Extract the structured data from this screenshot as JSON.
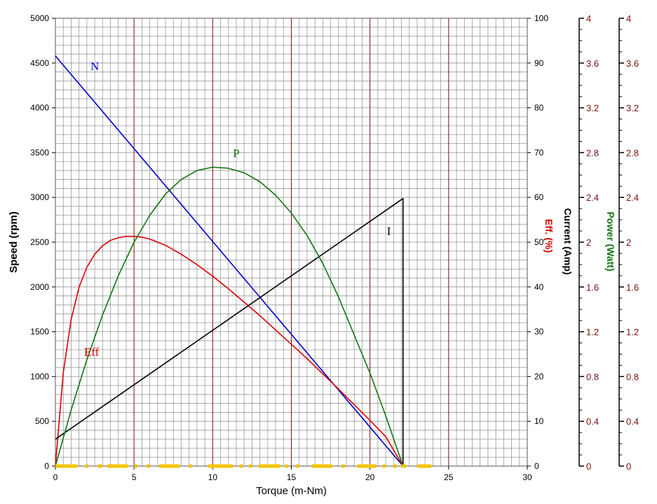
{
  "chart_data": {
    "type": "line",
    "xlabel": "Torque (m-Nm)",
    "x_ticks": [
      "0",
      "5",
      "10",
      "15",
      "20",
      "25",
      "30"
    ],
    "xlim": [
      0,
      30
    ],
    "grid": true,
    "axes": {
      "speed": {
        "label": "Speed (rpm)",
        "range": [
          0,
          5000
        ],
        "ticks": [
          "0",
          "500",
          "1000",
          "1500",
          "2000",
          "2500",
          "3000",
          "3500",
          "4000",
          "4500",
          "5000"
        ]
      },
      "efficiency": {
        "label": "Eff. (%)",
        "range": [
          0,
          100
        ],
        "ticks": [
          "0",
          "10",
          "20",
          "30",
          "40",
          "50",
          "60",
          "70",
          "80",
          "90",
          "100"
        ]
      },
      "current": {
        "label": "Current (Amp)",
        "range": [
          0,
          4
        ],
        "ticks": [
          "0",
          "0.4",
          "0.8",
          "1.2",
          "1.6",
          "2",
          "2.4",
          "2.8",
          "3.2",
          "3.6",
          "4"
        ]
      },
      "power": {
        "label": "Power (Watt)",
        "range": [
          0,
          4
        ],
        "ticks": [
          "0",
          "0.4",
          "0.8",
          "1.2",
          "1.6",
          "2",
          "2.4",
          "2.8",
          "3.2",
          "3.6",
          "4"
        ]
      }
    },
    "colors": {
      "speed": "#0000cc",
      "efficiency": "#dd0000",
      "current": "#000000",
      "power": "#117711",
      "grid_minor": "#999999",
      "grid_major": "#7a1010",
      "tick_text_right": "#7a1010",
      "marker": "#f5c400"
    },
    "series": [
      {
        "name": "N",
        "axis": "speed",
        "x": [
          0,
          22.1
        ],
        "y": [
          4580,
          0
        ]
      },
      {
        "name": "Eff",
        "axis": "efficiency",
        "x": [
          0,
          0.5,
          1,
          1.5,
          2,
          2.5,
          3,
          3.5,
          4,
          4.5,
          5,
          5.5,
          6,
          7,
          8,
          9,
          10,
          11,
          12,
          13,
          14,
          15,
          16,
          17,
          18,
          19,
          20,
          21,
          22.1
        ],
        "y": [
          0,
          20.8,
          32.7,
          39.9,
          44.4,
          47.3,
          49.2,
          50.4,
          51,
          51.3,
          51.3,
          51.1,
          50.7,
          49.3,
          47.3,
          45,
          42.4,
          39.6,
          36.6,
          33.6,
          30.4,
          27.2,
          24,
          20.6,
          17.2,
          13.7,
          10.2,
          6.6,
          0
        ]
      },
      {
        "name": "I",
        "axis": "current",
        "x": [
          0,
          22.1,
          22.1
        ],
        "y": [
          0.24,
          2.39,
          0
        ]
      },
      {
        "name": "P",
        "axis": "power",
        "x": [
          0,
          1,
          2,
          3,
          4,
          5,
          6,
          7,
          8,
          9,
          10,
          11,
          12,
          13,
          14,
          15,
          16,
          17,
          18,
          19,
          20,
          21,
          22.1
        ],
        "y": [
          0,
          0.5,
          0.95,
          1.35,
          1.7,
          2.0,
          2.24,
          2.43,
          2.56,
          2.64,
          2.67,
          2.66,
          2.62,
          2.54,
          2.42,
          2.26,
          2.06,
          1.81,
          1.51,
          1.17,
          0.83,
          0.45,
          0
        ]
      }
    ],
    "curve_labels": [
      {
        "text": "N",
        "x": 2.5,
        "axis": "speed",
        "y": 4420,
        "series": "N"
      },
      {
        "text": "P",
        "x": 11.5,
        "axis": "speed",
        "y": 3450,
        "series": "P"
      },
      {
        "text": "I",
        "x": 21.2,
        "axis": "speed",
        "y": 2580,
        "series": "I"
      },
      {
        "text": "Eff",
        "x": 2.3,
        "axis": "speed",
        "y": 1230,
        "series": "Eff"
      }
    ],
    "marker_x_ranges": [
      [
        0,
        1.4
      ],
      [
        1.9,
        2.1
      ],
      [
        2.7,
        3.0
      ],
      [
        3.3,
        4.6
      ],
      [
        5.0,
        5.2
      ],
      [
        5.8,
        6.0
      ],
      [
        6.6,
        7.9
      ],
      [
        8.5,
        8.7
      ],
      [
        9.7,
        11.3
      ],
      [
        11.7,
        11.9
      ],
      [
        12.3,
        12.5
      ],
      [
        12.9,
        14.3
      ],
      [
        14.6,
        14.8
      ],
      [
        15.3,
        15.5
      ],
      [
        16.3,
        17.6
      ],
      [
        18.2,
        18.4
      ],
      [
        19.2,
        20.4
      ],
      [
        20.8,
        21.0
      ],
      [
        21.5,
        21.7
      ],
      [
        22.0,
        22.3
      ],
      [
        23.0,
        23.9
      ]
    ]
  }
}
